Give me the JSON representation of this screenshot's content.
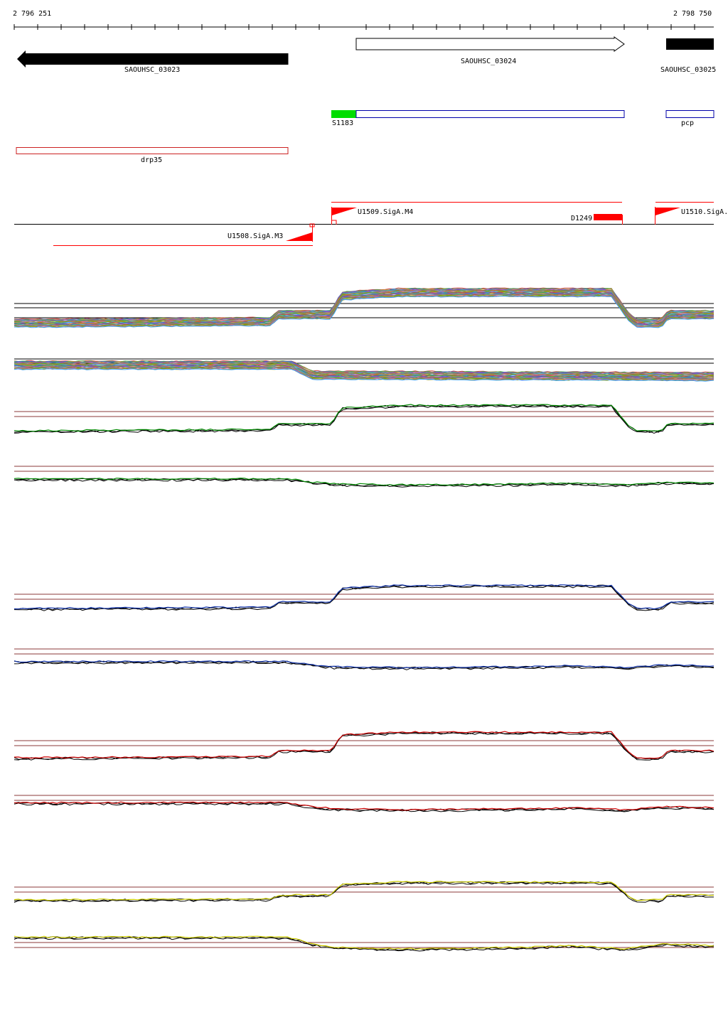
{
  "coords": {
    "start": "2 796 251",
    "end": "2 798 750"
  },
  "genes": [
    {
      "id": "g1",
      "name": "SAOUHSC_03023",
      "strand": "-",
      "filled": true
    },
    {
      "id": "g2",
      "name": "SAOUHSC_03024",
      "strand": "+",
      "filled": false
    },
    {
      "id": "g3",
      "name": "SAOUHSC_03025",
      "strand": "+",
      "filled": true
    }
  ],
  "features": {
    "s1183": "S1183",
    "pcp": "pcp",
    "drp35": "drp35",
    "u1509": "U1509.SigA.M4",
    "d1249": "D1249",
    "u1510": "U1510.SigA.",
    "u1508": "U1508.SigA.M3"
  },
  "colors": {
    "gene": "#000000",
    "feature_box": "#0000aa",
    "feature_green": "#00dd00",
    "drp35": "#cc2222",
    "promoter": "#ff0000",
    "track_green": "#008800",
    "track_blue": "#1133aa",
    "track_red": "#cc0000",
    "track_yellow": "#cccc00",
    "reference_line": "#8b3a3a"
  }
}
